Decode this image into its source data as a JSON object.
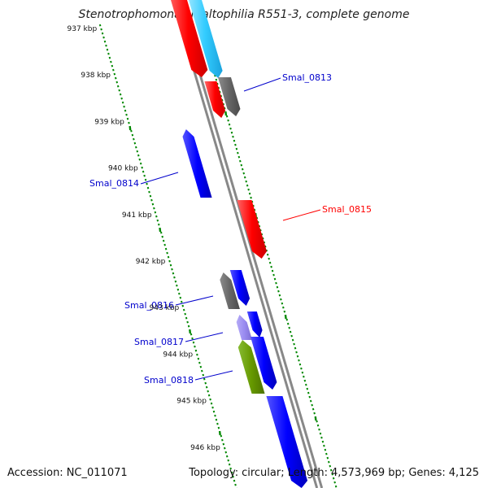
{
  "title": "Stenotrophomonas maltophilia R551-3, complete genome",
  "footer": {
    "accession_label": "Accession:",
    "accession": "NC_011071",
    "topology_label": "Topology:",
    "topology": "circular;",
    "length_label": "Length:",
    "length": "4,573,969 bp;",
    "genes_label": "Genes:",
    "genes": "4,125"
  },
  "colors": {
    "red": "#ff0000",
    "blue": "#0000ff",
    "cyan": "#33ccff",
    "gray": "#6a6a6a",
    "olive": "#669900",
    "purple": "#8877ee",
    "backbone": "#888888",
    "ticks": "#008800"
  },
  "scale_ticks": [
    "937 kbp",
    "938 kbp",
    "939 kbp",
    "940 kbp",
    "941 kbp",
    "942 kbp",
    "943 kbp",
    "944 kbp",
    "945 kbp",
    "946 kbp"
  ],
  "genes": [
    {
      "color": "red",
      "strand": "forward"
    },
    {
      "color": "cyan",
      "strand": "forward"
    },
    {
      "color": "red",
      "strand": "forward"
    },
    {
      "color": "gray",
      "strand": "forward",
      "label": "Smal_0813"
    },
    {
      "color": "blue",
      "strand": "reverse",
      "label": "Smal_0814"
    },
    {
      "color": "red",
      "strand": "forward",
      "label": "Smal_0815"
    },
    {
      "color": "gray",
      "strand": "reverse",
      "label": "Smal_0816"
    },
    {
      "color": "blue",
      "strand": "forward"
    },
    {
      "color": "blue",
      "strand": "forward"
    },
    {
      "color": "purple",
      "strand": "reverse",
      "label": "Smal_0817"
    },
    {
      "color": "blue",
      "strand": "forward"
    },
    {
      "color": "olive",
      "strand": "reverse",
      "label": "Smal_0818"
    },
    {
      "color": "blue",
      "strand": "forward"
    }
  ]
}
